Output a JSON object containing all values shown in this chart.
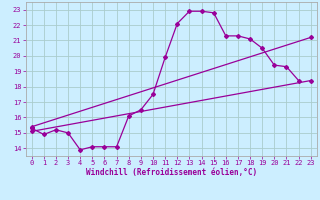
{
  "xlabel": "Windchill (Refroidissement éolien,°C)",
  "bg_color": "#cceeff",
  "grid_color": "#aacccc",
  "line_color": "#990099",
  "spine_color": "#aaaaaa",
  "xlim": [
    -0.5,
    23.5
  ],
  "ylim": [
    13.5,
    23.5
  ],
  "xticks": [
    0,
    1,
    2,
    3,
    4,
    5,
    6,
    7,
    8,
    9,
    10,
    11,
    12,
    13,
    14,
    15,
    16,
    17,
    18,
    19,
    20,
    21,
    22,
    23
  ],
  "yticks": [
    14,
    15,
    16,
    17,
    18,
    19,
    20,
    21,
    22,
    23
  ],
  "series1_x": [
    0,
    1,
    2,
    3,
    4,
    5,
    6,
    7,
    8,
    9,
    10,
    11,
    12,
    13,
    14,
    15,
    16,
    17,
    18,
    19,
    20,
    21,
    22,
    23
  ],
  "series1_y": [
    15.3,
    14.9,
    15.2,
    15.0,
    13.9,
    14.1,
    14.1,
    14.1,
    16.1,
    16.5,
    17.5,
    19.9,
    22.1,
    22.9,
    22.9,
    22.8,
    21.3,
    21.3,
    21.1,
    20.5,
    19.4,
    19.3,
    18.4,
    null
  ],
  "series2_x": [
    0,
    23
  ],
  "series2_y": [
    15.1,
    18.4
  ],
  "series3_x": [
    0,
    23
  ],
  "series3_y": [
    15.4,
    21.2
  ],
  "marker": "D",
  "markersize": 2,
  "linewidth": 0.9,
  "tick_fontsize": 5,
  "label_fontsize": 5.5
}
